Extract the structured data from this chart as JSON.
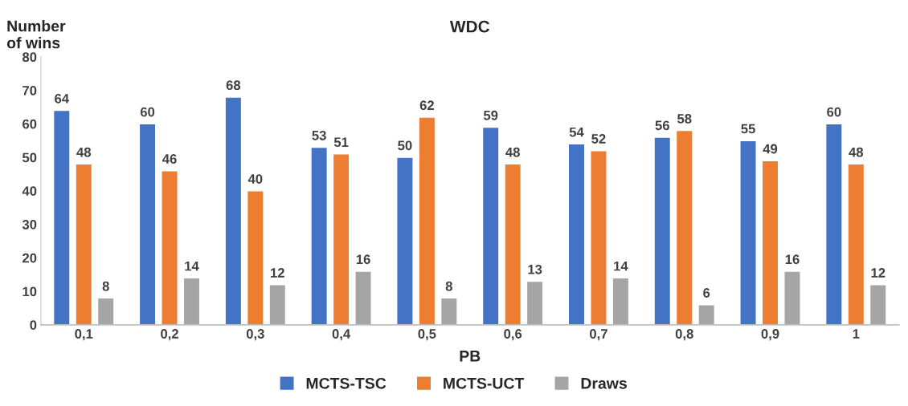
{
  "chart_data": {
    "type": "bar",
    "title": "WDC",
    "xlabel": "PB",
    "ylabel": "Number\nof wins",
    "categories": [
      "0,1",
      "0,2",
      "0,3",
      "0,4",
      "0,5",
      "0,6",
      "0,7",
      "0,8",
      "0,9",
      "1"
    ],
    "series": [
      {
        "name": "MCTS-TSC",
        "color": "#4472c4",
        "values": [
          64,
          60,
          68,
          53,
          50,
          59,
          54,
          56,
          55,
          60
        ]
      },
      {
        "name": "MCTS-UCT",
        "color": "#ed7d31",
        "values": [
          48,
          46,
          40,
          51,
          62,
          48,
          52,
          58,
          49,
          48
        ]
      },
      {
        "name": "Draws",
        "color": "#a5a5a5",
        "values": [
          8,
          14,
          12,
          16,
          8,
          13,
          14,
          6,
          16,
          12
        ]
      }
    ],
    "ylim": [
      0,
      80
    ],
    "yticks": [
      0,
      10,
      20,
      30,
      40,
      50,
      60,
      70,
      80
    ],
    "data_labels": true,
    "legend": "bottom",
    "grid": false
  }
}
